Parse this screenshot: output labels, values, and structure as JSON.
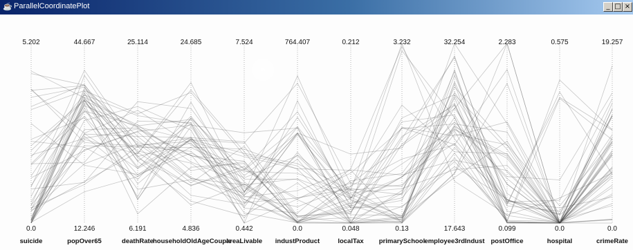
{
  "window": {
    "title": "ParallelCoordinatePlot",
    "icon": "java-cup-icon",
    "controls": [
      "minimize",
      "maximize",
      "close"
    ]
  },
  "colors": {
    "titlebar_start": "#0a246a",
    "titlebar_end": "#a6caf0",
    "line": "#3c3c3c",
    "axis": "#b4b4b4"
  },
  "axes": [
    {
      "name": "suicide",
      "max": "5.202",
      "min": "0.0"
    },
    {
      "name": "popOver65",
      "max": "44.667",
      "min": "12.246"
    },
    {
      "name": "deathRate",
      "max": "25.114",
      "min": "6.191"
    },
    {
      "name": "householdOldAgeCouple",
      "max": "24.685",
      "min": "4.836"
    },
    {
      "name": "areaLivable",
      "max": "7.524",
      "min": "0.442"
    },
    {
      "name": "industProduct",
      "max": "764.407",
      "min": "0.0"
    },
    {
      "name": "localTax",
      "max": "0.212",
      "min": "0.048"
    },
    {
      "name": "primarySchool",
      "max": "3.232",
      "min": "0.13"
    },
    {
      "name": "employee3rdIndust",
      "max": "32.254",
      "min": "17.643"
    },
    {
      "name": "postOffice",
      "max": "2.283",
      "min": "0.099"
    },
    {
      "name": "hospital",
      "max": "0.575",
      "min": "0.0"
    },
    {
      "name": "crimeRate",
      "max": "19.257",
      "min": "0.0"
    }
  ],
  "chart_data": {
    "type": "parallel-coordinates",
    "title": "",
    "dimensions": [
      "suicide",
      "popOver65",
      "deathRate",
      "householdOldAgeCouple",
      "areaLivable",
      "industProduct",
      "localTax",
      "primarySchool",
      "employee3rdIndust",
      "postOffice",
      "hospital",
      "crimeRate"
    ],
    "ranges": [
      [
        0.0,
        5.202
      ],
      [
        12.246,
        44.667
      ],
      [
        6.191,
        25.114
      ],
      [
        4.836,
        24.685
      ],
      [
        0.442,
        7.524
      ],
      [
        0.0,
        764.407
      ],
      [
        0.048,
        0.212
      ],
      [
        0.13,
        3.232
      ],
      [
        17.643,
        32.254
      ],
      [
        0.099,
        2.283
      ],
      [
        0.0,
        0.575
      ],
      [
        0.0,
        19.257
      ]
    ],
    "line_count": 47,
    "grid": false,
    "legend": "none"
  }
}
